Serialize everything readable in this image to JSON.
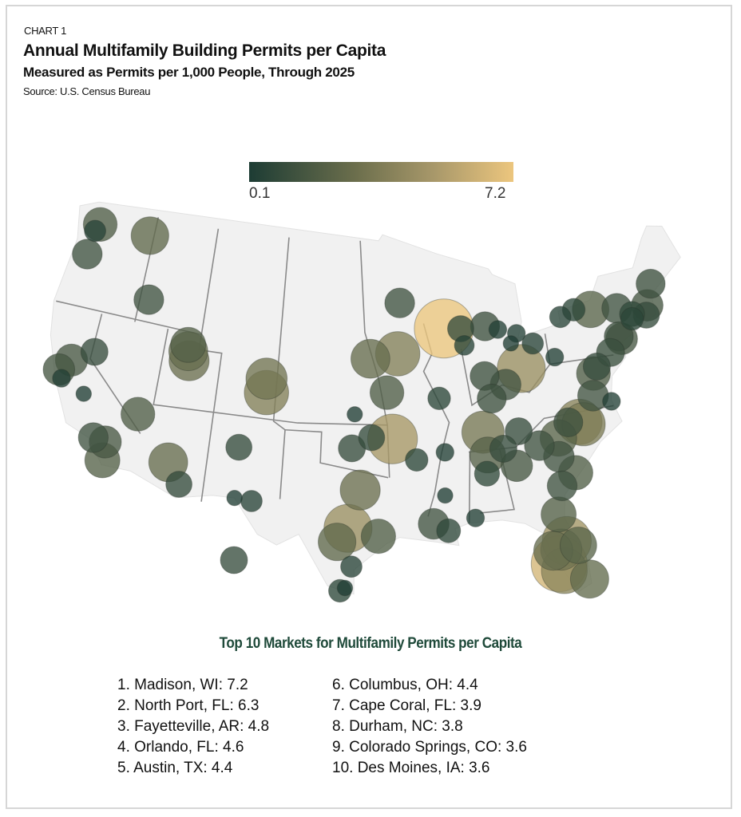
{
  "header": {
    "kicker": "CHART 1",
    "title": "Annual Multifamily Building Permits per Capita",
    "subtitle": "Measured as Permits per 1,000 People, Through 2025",
    "source": "Source: U.S. Census Bureau"
  },
  "chart_data": {
    "type": "scatter",
    "subtype": "bubble-map",
    "title": "Annual Multifamily Building Permits per Capita",
    "value_label": "Permits per 1,000 People",
    "legend": {
      "min_label": "0.1",
      "max_label": "7.2",
      "min": 0.1,
      "max": 7.2,
      "placement": "top-center"
    },
    "colors": {
      "low": "#1d3c34",
      "high": "#ecc67e"
    },
    "points_lon_lat_value": [
      [
        -122.3,
        47.6,
        1.8
      ],
      [
        -117.4,
        47.7,
        2.4
      ],
      [
        -122.6,
        47.1,
        0.5
      ],
      [
        -122.7,
        45.5,
        1.3
      ],
      [
        -116.2,
        43.6,
        1.3
      ],
      [
        -119.8,
        39.5,
        1.0
      ],
      [
        -121.5,
        38.6,
        1.6
      ],
      [
        -122.3,
        37.8,
        1.5
      ],
      [
        -121.9,
        37.3,
        0.3
      ],
      [
        -119.8,
        36.7,
        0.2
      ],
      [
        -118.2,
        34.1,
        1.3
      ],
      [
        -117.2,
        34.0,
        1.6
      ],
      [
        -117.1,
        32.8,
        2.0
      ],
      [
        -115.1,
        36.2,
        1.8
      ],
      [
        -112.0,
        33.5,
        2.6
      ],
      [
        -110.9,
        32.2,
        0.9
      ],
      [
        -111.9,
        40.8,
        2.6
      ],
      [
        -111.7,
        40.2,
        2.8
      ],
      [
        -112.0,
        41.2,
        2.0
      ],
      [
        -104.9,
        39.7,
        3.0
      ],
      [
        -104.8,
        38.8,
        3.6
      ],
      [
        -106.6,
        35.1,
        0.9
      ],
      [
        -106.5,
        31.8,
        0.2
      ],
      [
        -96.8,
        32.8,
        2.8
      ],
      [
        -97.7,
        30.3,
        4.4
      ],
      [
        -98.5,
        29.4,
        2.4
      ],
      [
        -95.4,
        29.8,
        1.9
      ],
      [
        -97.4,
        27.8,
        0.5
      ],
      [
        -98.2,
        26.2,
        0.6
      ],
      [
        -97.5,
        35.5,
        1.0
      ],
      [
        -95.9,
        36.2,
        0.9
      ],
      [
        -97.3,
        37.7,
        0.2
      ],
      [
        -94.6,
        39.1,
        1.8
      ],
      [
        -96.0,
        41.3,
        2.6
      ],
      [
        -93.6,
        41.6,
        3.6
      ],
      [
        -94.2,
        36.1,
        4.8
      ],
      [
        -92.3,
        34.7,
        0.6
      ],
      [
        -90.0,
        35.1,
        0.3
      ],
      [
        -93.3,
        44.9,
        1.3
      ],
      [
        -89.4,
        43.1,
        7.2
      ],
      [
        -87.9,
        43.0,
        0.9
      ],
      [
        -87.7,
        41.9,
        0.4
      ],
      [
        -90.2,
        38.6,
        0.6
      ],
      [
        -86.2,
        39.8,
        1.2
      ],
      [
        -83.0,
        40.0,
        4.4
      ],
      [
        -84.5,
        39.1,
        1.4
      ],
      [
        -85.8,
        38.3,
        1.2
      ],
      [
        -86.8,
        36.2,
        3.2
      ],
      [
        -83.9,
        36.0,
        1.0
      ],
      [
        -85.3,
        35.0,
        1.0
      ],
      [
        -84.4,
        33.8,
        1.5
      ],
      [
        -86.8,
        33.5,
        0.8
      ],
      [
        -86.6,
        34.7,
        2.1
      ],
      [
        -90.2,
        32.3,
        0.2
      ],
      [
        -90.1,
        30.0,
        0.7
      ],
      [
        -91.2,
        30.5,
        1.4
      ],
      [
        -88.0,
        30.7,
        0.3
      ],
      [
        -80.8,
        35.2,
        2.2
      ],
      [
        -78.6,
        35.8,
        3.4
      ],
      [
        -78.9,
        36.0,
        3.8
      ],
      [
        -79.8,
        36.1,
        1.2
      ],
      [
        -79.9,
        32.8,
        1.9
      ],
      [
        -81.0,
        34.0,
        1.4
      ],
      [
        -82.4,
        34.9,
        1.3
      ],
      [
        -81.1,
        32.1,
        1.3
      ],
      [
        -81.7,
        30.3,
        2.0
      ],
      [
        -81.4,
        28.5,
        4.6
      ],
      [
        -82.5,
        28.0,
        2.6
      ],
      [
        -82.2,
        27.1,
        6.3
      ],
      [
        -81.9,
        26.6,
        3.9
      ],
      [
        -80.2,
        25.8,
        2.5
      ],
      [
        -81.9,
        28.0,
        3.0
      ],
      [
        -80.6,
        28.1,
        2.2
      ],
      [
        -77.4,
        37.5,
        1.4
      ],
      [
        -76.0,
        36.9,
        0.3
      ],
      [
        -77.0,
        38.9,
        1.8
      ],
      [
        -76.6,
        39.3,
        1.0
      ],
      [
        -75.2,
        40.0,
        1.1
      ],
      [
        -74.0,
        40.7,
        1.5
      ],
      [
        -71.1,
        42.4,
        1.5
      ],
      [
        -71.4,
        41.8,
        0.9
      ],
      [
        -72.7,
        41.8,
        0.6
      ],
      [
        -80.0,
        40.4,
        0.3
      ],
      [
        -78.9,
        42.9,
        0.5
      ],
      [
        -77.6,
        43.2,
        0.6
      ],
      [
        -76.1,
        43.0,
        2.2
      ],
      [
        -73.8,
        42.7,
        1.3
      ],
      [
        -70.3,
        43.7,
        1.2
      ],
      [
        -83.0,
        42.3,
        0.3
      ],
      [
        -85.7,
        43.0,
        1.2
      ],
      [
        -81.7,
        41.5,
        0.5
      ],
      [
        -83.6,
        41.7,
        0.2
      ],
      [
        -84.6,
        42.7,
        0.3
      ],
      [
        -72.6,
        42.1,
        0.8
      ],
      [
        -74.2,
        40.9,
        1.2
      ]
    ],
    "inset_points_value": [
      1.0,
      0.2,
      0.5
    ],
    "top10_title": "Top 10 Markets for Multifamily Permits per Capita",
    "top10": [
      "1. Madison, WI: 7.2",
      "2. North Port, FL: 6.3",
      "3. Fayetteville, AR: 4.8",
      "4. Orlando, FL: 4.6",
      "5. Austin, TX: 4.4",
      "6. Columbus, OH: 4.4",
      "7. Cape Coral, FL: 3.9",
      "8. Durham, NC: 3.8",
      "9. Colorado Springs, CO: 3.6",
      "10. Des Moines, IA: 3.6"
    ]
  }
}
